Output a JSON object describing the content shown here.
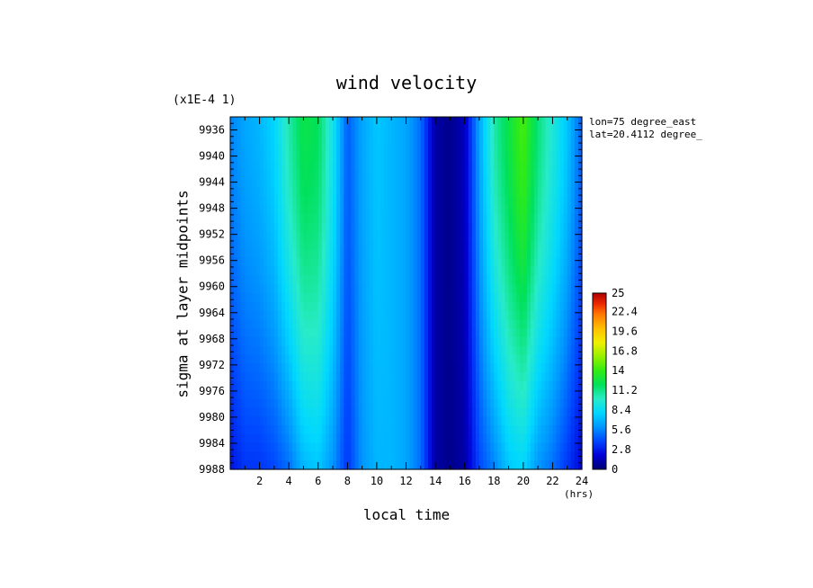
{
  "chart_data": {
    "type": "heatmap",
    "title": "wind velocity",
    "scale_note": "(x1E-4 1)",
    "annotations": [
      "lon=75 degree_east",
      "lat=20.4112 degree_"
    ],
    "xlabel": "local time",
    "xunits": "(hrs)",
    "ylabel": "sigma at layer midpoints",
    "xlim": [
      0,
      24
    ],
    "ylim": [
      9988,
      9934
    ],
    "x_ticks": [
      2,
      4,
      6,
      8,
      10,
      12,
      14,
      16,
      18,
      20,
      22,
      24
    ],
    "y_ticks": [
      9936,
      9940,
      9944,
      9948,
      9952,
      9956,
      9960,
      9964,
      9968,
      9972,
      9976,
      9980,
      9984,
      9988
    ],
    "colorbar": {
      "min": 0,
      "max": 25,
      "tick_labels": [
        "25",
        "22.4",
        "19.6",
        "16.8",
        "14",
        "11.2",
        "8.4",
        "5.6",
        "2.8",
        "0"
      ]
    },
    "x": [
      0,
      1,
      2,
      3,
      4,
      5,
      6,
      7,
      8,
      9,
      10,
      11,
      12,
      13,
      14,
      15,
      16,
      17,
      18,
      19,
      20,
      21,
      22,
      23,
      24
    ],
    "value_profile_top": [
      5.5,
      6.5,
      7.0,
      8.0,
      10.5,
      12.5,
      12.0,
      9.0,
      4.5,
      6.5,
      7.5,
      7.0,
      6.5,
      5.0,
      1.0,
      0.5,
      1.5,
      6.5,
      10.5,
      12.5,
      14.5,
      11.5,
      9.5,
      7.5,
      4.5
    ],
    "value_profile_bottom": [
      2.5,
      3.5,
      3.5,
      4.0,
      5.0,
      7.0,
      7.5,
      6.0,
      3.5,
      6.0,
      7.0,
      7.0,
      6.5,
      5.0,
      1.0,
      0.5,
      1.0,
      4.0,
      5.5,
      7.5,
      8.0,
      6.0,
      5.0,
      3.5,
      2.0
    ]
  }
}
